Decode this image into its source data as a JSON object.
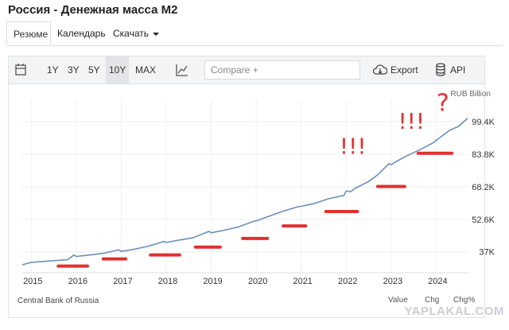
{
  "page": {
    "title": "Россия - Денежная масса M2"
  },
  "tabs": [
    {
      "label": "Резюме",
      "active": true
    },
    {
      "label": "Календарь",
      "active": false
    },
    {
      "label": "Скачать",
      "active": false,
      "dropdown": true
    }
  ],
  "toolbar": {
    "calendar_icon": "calendar-icon",
    "ranges": [
      "1Y",
      "3Y",
      "5Y",
      "10Y",
      "MAX"
    ],
    "selected_range": "10Y",
    "chart_type_icon": "line-chart-icon",
    "compare_placeholder": "Compare +",
    "export_label": "Export",
    "export_icon": "cloud-download-icon",
    "api_label": "API",
    "api_icon": "database-icon"
  },
  "chart_data": {
    "type": "line",
    "unit_label": "RUB Billion",
    "x_ticks": [
      "2015",
      "2016",
      "2017",
      "2018",
      "2019",
      "2020",
      "2021",
      "2022",
      "2023",
      "2024"
    ],
    "y_ticks": [
      "37K",
      "52.6K",
      "68.2K",
      "83.8K",
      "99.4K"
    ],
    "y_tick_values": [
      37000,
      52600,
      68200,
      83800,
      99400
    ],
    "ylim": [
      27000,
      110000
    ],
    "xlim": [
      2014.8,
      2024.7
    ],
    "line_color": "#6a90b8",
    "series": [
      {
        "x": [
          2014.8,
          2015.0,
          2015.2,
          2015.5,
          2015.8,
          2015.95,
          2016.0,
          2016.3,
          2016.6,
          2016.95,
          2017.0,
          2017.3,
          2017.6,
          2017.95,
          2018.0,
          2018.3,
          2018.6,
          2018.95,
          2019.0,
          2019.3,
          2019.6,
          2019.95,
          2020.0,
          2020.3,
          2020.6,
          2020.95,
          2021.0,
          2021.3,
          2021.6,
          2021.95,
          2022.0,
          2022.1,
          2022.2,
          2022.3,
          2022.5,
          2022.7,
          2022.95,
          2023.0,
          2023.3,
          2023.6,
          2023.95,
          2024.0,
          2024.3,
          2024.5,
          2024.7
        ],
        "y": [
          30800,
          32000,
          32300,
          32800,
          33200,
          35500,
          34800,
          35500,
          36300,
          38000,
          37200,
          38300,
          39700,
          42000,
          41500,
          42700,
          43800,
          46800,
          46100,
          47400,
          48900,
          51700,
          51800,
          54200,
          56500,
          58700,
          58800,
          60200,
          62400,
          64000,
          66200,
          65800,
          67500,
          68500,
          70700,
          73900,
          79200,
          78800,
          82500,
          85500,
          89400,
          90400,
          95200,
          97100,
          101000
        ]
      }
    ],
    "annotation_lines": [
      {
        "x_start": 2015.6,
        "x_end": 2016.25,
        "y": 30200
      },
      {
        "x_start": 2016.6,
        "x_end": 2017.1,
        "y": 33600
      },
      {
        "x_start": 2017.65,
        "x_end": 2018.3,
        "y": 35500
      },
      {
        "x_start": 2018.65,
        "x_end": 2019.2,
        "y": 39300
      },
      {
        "x_start": 2019.7,
        "x_end": 2020.25,
        "y": 43400
      },
      {
        "x_start": 2020.6,
        "x_end": 2021.1,
        "y": 49400
      },
      {
        "x_start": 2021.55,
        "x_end": 2022.25,
        "y": 56300
      },
      {
        "x_start": 2022.7,
        "x_end": 2023.3,
        "y": 68300
      },
      {
        "x_start": 2023.6,
        "x_end": 2024.35,
        "y": 84200
      }
    ],
    "annotation_color": "#e03030",
    "annotation_texts": [
      {
        "text": "!!!",
        "x": 2022.15,
        "y": 84000
      },
      {
        "text": "!!!",
        "x": 2023.45,
        "y": 96000
      },
      {
        "text": "?",
        "x": 2024.15,
        "y": 104500
      }
    ],
    "grid": true,
    "legend": "none"
  },
  "footer": {
    "source": "Central Bank of Russia",
    "bottom_tabs": [
      "Value",
      "Chg",
      "Chg%"
    ],
    "watermark": "YAPLAKAL.COM"
  }
}
